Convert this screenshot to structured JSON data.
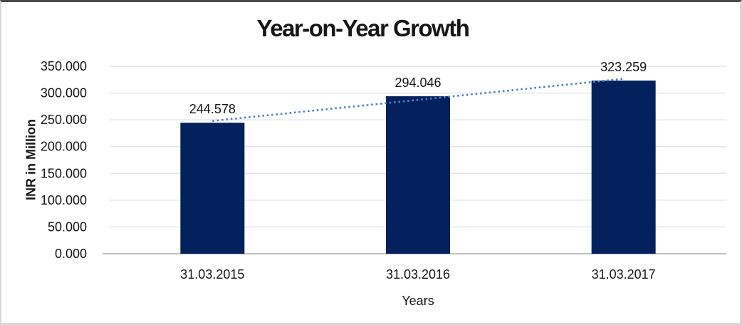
{
  "frame": {
    "background": "#ffffff",
    "border_top_color": "#4a4a4a",
    "border_side_color": "#d6d6d6"
  },
  "chart_data": {
    "type": "bar",
    "title": "Year-on-Year Growth",
    "xlabel": "Years",
    "ylabel": "INR in Million",
    "categories": [
      "31.03.2015",
      "31.03.2016",
      "31.03.2017"
    ],
    "values": [
      244.578,
      294.046,
      323.259
    ],
    "value_labels": [
      "244.578",
      "294.046",
      "323.259"
    ],
    "ylim": [
      0,
      350
    ],
    "y_ticks": [
      {
        "value": 0,
        "label": "0.000"
      },
      {
        "value": 50,
        "label": "50.000"
      },
      {
        "value": 100,
        "label": "100.000"
      },
      {
        "value": 150,
        "label": "150.000"
      },
      {
        "value": 200,
        "label": "200.000"
      },
      {
        "value": 250,
        "label": "250.000"
      },
      {
        "value": 300,
        "label": "300.000"
      },
      {
        "value": 350,
        "label": "350.000"
      }
    ],
    "grid": true,
    "legend": "none",
    "bar_color": "#03215C",
    "gridline_color": "#D9D9D9",
    "axis_line_color": "#ABABAB",
    "text_color": "#161616",
    "trendline": {
      "type": "linear",
      "style": "dotted",
      "color": "#4E81BD"
    }
  }
}
